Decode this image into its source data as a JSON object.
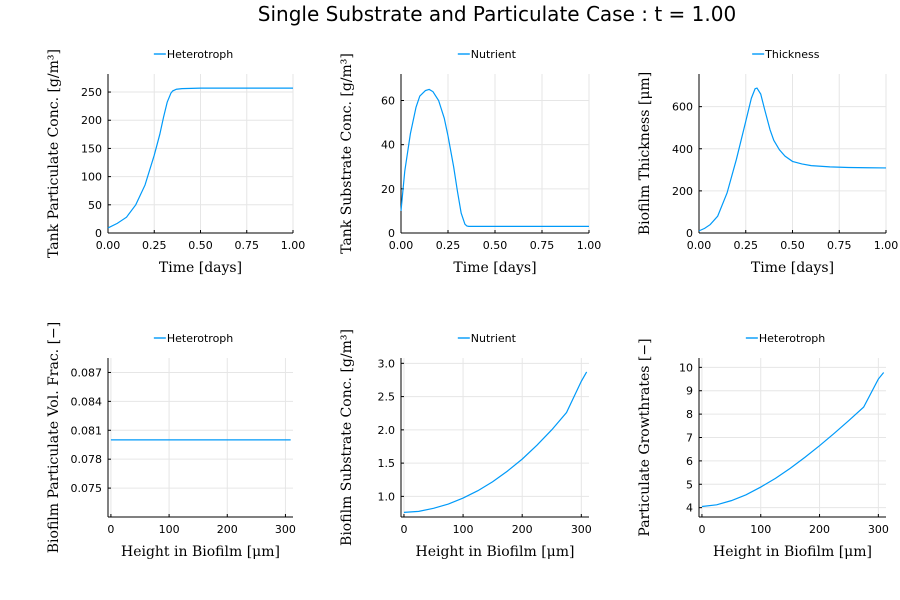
{
  "title": "Single Substrate and Particulate Case : t = 1.00",
  "chart_data": [
    {
      "type": "line",
      "xlabel": "Time [days]",
      "ylabel": "Tank Particulate Conc. [g/m³]",
      "xlim": [
        0,
        1
      ],
      "ylim": [
        0,
        282
      ],
      "xticks": [
        0,
        0.25,
        0.5,
        0.75,
        1.0
      ],
      "xtick_labels": [
        "0.00",
        "0.25",
        "0.50",
        "0.75",
        "1.00"
      ],
      "yticks": [
        0,
        50,
        100,
        150,
        200,
        250
      ],
      "ytick_labels": [
        "0",
        "50",
        "100",
        "150",
        "200",
        "250"
      ],
      "grid": true,
      "legend": "top-center",
      "series": [
        {
          "name": "Heterotroph",
          "color": "#009af9",
          "x": [
            0,
            0.05,
            0.1,
            0.15,
            0.2,
            0.25,
            0.28,
            0.3,
            0.32,
            0.34,
            0.35,
            0.37,
            0.4,
            0.45,
            0.5,
            0.6,
            0.75,
            1.0
          ],
          "y": [
            9,
            17,
            28,
            50,
            85,
            138,
            175,
            205,
            232,
            248,
            252,
            255,
            256,
            256.5,
            257,
            257,
            257,
            257
          ]
        }
      ]
    },
    {
      "type": "line",
      "xlabel": "Time [days]",
      "ylabel": "Tank Substrate Conc. [g/m³]",
      "xlim": [
        0,
        1
      ],
      "ylim": [
        0,
        72
      ],
      "xticks": [
        0,
        0.25,
        0.5,
        0.75,
        1.0
      ],
      "xtick_labels": [
        "0.00",
        "0.25",
        "0.50",
        "0.75",
        "1.00"
      ],
      "yticks": [
        0,
        20,
        40,
        60
      ],
      "ytick_labels": [
        "0",
        "20",
        "40",
        "60"
      ],
      "grid": true,
      "legend": "top-center",
      "series": [
        {
          "name": "Nutrient",
          "color": "#009af9",
          "x": [
            0,
            0.02,
            0.05,
            0.08,
            0.1,
            0.13,
            0.15,
            0.17,
            0.2,
            0.23,
            0.25,
            0.28,
            0.3,
            0.32,
            0.34,
            0.35,
            0.36,
            0.4,
            0.5,
            0.75,
            1.0
          ],
          "y": [
            10,
            28,
            45,
            57,
            62,
            64.5,
            65,
            64,
            60,
            52,
            44,
            30,
            19,
            9,
            4,
            3.2,
            3,
            3,
            3,
            3,
            3
          ]
        }
      ]
    },
    {
      "type": "line",
      "xlabel": "Time [days]",
      "ylabel": "Biofilm Thickness [μm]",
      "xlim": [
        0,
        1
      ],
      "ylim": [
        0,
        755
      ],
      "xticks": [
        0,
        0.25,
        0.5,
        0.75,
        1.0
      ],
      "xtick_labels": [
        "0.00",
        "0.25",
        "0.50",
        "0.75",
        "1.00"
      ],
      "yticks": [
        0,
        200,
        400,
        600
      ],
      "ytick_labels": [
        "0",
        "200",
        "400",
        "600"
      ],
      "grid": true,
      "legend": "top-center",
      "series": [
        {
          "name": "Thickness",
          "color": "#009af9",
          "x": [
            0,
            0.03,
            0.06,
            0.1,
            0.15,
            0.2,
            0.25,
            0.28,
            0.3,
            0.31,
            0.33,
            0.35,
            0.38,
            0.4,
            0.43,
            0.46,
            0.5,
            0.55,
            0.6,
            0.7,
            0.8,
            0.9,
            1.0
          ],
          "y": [
            10,
            22,
            40,
            80,
            190,
            350,
            530,
            640,
            685,
            688,
            660,
            590,
            490,
            440,
            395,
            365,
            340,
            328,
            320,
            314,
            311,
            310,
            309
          ]
        }
      ]
    },
    {
      "type": "line",
      "xlabel": "Height in Biofilm [μm]",
      "ylabel": "Biofilm Particulate Vol. Frac. [−]",
      "xlim": [
        -5,
        313
      ],
      "ylim": [
        0.072,
        0.0885
      ],
      "xticks": [
        0,
        100,
        200,
        300
      ],
      "xtick_labels": [
        "0",
        "100",
        "200",
        "300"
      ],
      "yticks": [
        0.075,
        0.078,
        0.081,
        0.084,
        0.087
      ],
      "ytick_labels": [
        "0.075",
        "0.078",
        "0.081",
        "0.084",
        "0.087"
      ],
      "grid": true,
      "legend": "top-center",
      "series": [
        {
          "name": "Heterotroph",
          "color": "#009af9",
          "x": [
            0,
            309
          ],
          "y": [
            0.08,
            0.08
          ]
        }
      ]
    },
    {
      "type": "line",
      "xlabel": "Height in Biofilm [μm]",
      "ylabel": "Biofilm Substrate Conc. [g/m³]",
      "xlim": [
        -5,
        313
      ],
      "ylim": [
        0.69,
        3.08
      ],
      "xticks": [
        0,
        100,
        200,
        300
      ],
      "xtick_labels": [
        "0",
        "100",
        "200",
        "300"
      ],
      "yticks": [
        1.0,
        1.5,
        2.0,
        2.5,
        3.0
      ],
      "ytick_labels": [
        "1.0",
        "1.5",
        "2.0",
        "2.5",
        "3.0"
      ],
      "grid": true,
      "legend": "top-center",
      "series": [
        {
          "name": "Nutrient",
          "color": "#009af9",
          "x": [
            0,
            25,
            50,
            75,
            100,
            125,
            150,
            175,
            200,
            225,
            250,
            275,
            300,
            309
          ],
          "y": [
            0.76,
            0.775,
            0.82,
            0.885,
            0.975,
            1.085,
            1.22,
            1.38,
            1.56,
            1.77,
            2.0,
            2.26,
            2.73,
            2.87
          ]
        }
      ]
    },
    {
      "type": "line",
      "xlabel": "Height in Biofilm [μm]",
      "ylabel": "Particulate Growthrates [−]",
      "xlim": [
        -5,
        313
      ],
      "ylim": [
        3.6,
        10.4
      ],
      "xticks": [
        0,
        100,
        200,
        300
      ],
      "xtick_labels": [
        "0",
        "100",
        "200",
        "300"
      ],
      "yticks": [
        4,
        5,
        6,
        7,
        8,
        9,
        10
      ],
      "ytick_labels": [
        "4",
        "5",
        "6",
        "7",
        "8",
        "9",
        "10"
      ],
      "grid": true,
      "legend": "top-center",
      "series": [
        {
          "name": "Heterotroph",
          "color": "#009af9",
          "x": [
            0,
            25,
            50,
            75,
            100,
            125,
            150,
            175,
            200,
            225,
            250,
            275,
            300,
            309
          ],
          "y": [
            4.05,
            4.12,
            4.3,
            4.55,
            4.88,
            5.25,
            5.68,
            6.15,
            6.65,
            7.18,
            7.73,
            8.3,
            9.5,
            9.78
          ]
        }
      ]
    }
  ]
}
